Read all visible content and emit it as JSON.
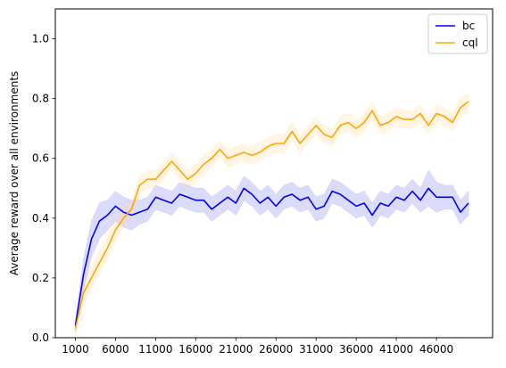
{
  "chart_data": {
    "type": "line",
    "title": "",
    "xlabel": "",
    "ylabel": "Average reward over all environments",
    "xlim": [
      -1500,
      53000
    ],
    "ylim": [
      0.0,
      1.1
    ],
    "x_ticks": [
      1000,
      6000,
      11000,
      16000,
      21000,
      26000,
      31000,
      36000,
      41000,
      46000
    ],
    "y_ticks": [
      0.0,
      0.2,
      0.4,
      0.6,
      0.8,
      1.0
    ],
    "grid": false,
    "legend_position": "top-right",
    "x": [
      1000,
      2000,
      3000,
      4000,
      5000,
      6000,
      7000,
      8000,
      9000,
      10000,
      11000,
      12000,
      13000,
      14000,
      15000,
      16000,
      17000,
      18000,
      19000,
      20000,
      21000,
      22000,
      23000,
      24000,
      25000,
      26000,
      27000,
      28000,
      29000,
      30000,
      31000,
      32000,
      33000,
      34000,
      35000,
      36000,
      37000,
      38000,
      39000,
      40000,
      41000,
      42000,
      43000,
      44000,
      45000,
      46000,
      47000,
      48000,
      49000,
      50000
    ],
    "series": [
      {
        "name": "bc",
        "color": "#0000ff",
        "band_color": "#6f6ff5",
        "values": [
          0.04,
          0.21,
          0.33,
          0.39,
          0.41,
          0.44,
          0.42,
          0.41,
          0.42,
          0.43,
          0.47,
          0.46,
          0.45,
          0.48,
          0.47,
          0.46,
          0.46,
          0.43,
          0.45,
          0.47,
          0.45,
          0.5,
          0.48,
          0.45,
          0.47,
          0.44,
          0.47,
          0.48,
          0.46,
          0.47,
          0.43,
          0.44,
          0.49,
          0.48,
          0.46,
          0.44,
          0.45,
          0.41,
          0.45,
          0.44,
          0.47,
          0.46,
          0.49,
          0.46,
          0.5,
          0.47,
          0.47,
          0.47,
          0.42,
          0.45
        ],
        "band": [
          0.02,
          0.05,
          0.06,
          0.06,
          0.05,
          0.05,
          0.05,
          0.05,
          0.04,
          0.04,
          0.04,
          0.04,
          0.04,
          0.04,
          0.04,
          0.04,
          0.04,
          0.04,
          0.04,
          0.04,
          0.04,
          0.04,
          0.04,
          0.04,
          0.04,
          0.04,
          0.04,
          0.04,
          0.04,
          0.04,
          0.04,
          0.04,
          0.04,
          0.04,
          0.04,
          0.04,
          0.04,
          0.04,
          0.04,
          0.04,
          0.04,
          0.04,
          0.04,
          0.04,
          0.06,
          0.05,
          0.04,
          0.04,
          0.04,
          0.04
        ]
      },
      {
        "name": "cql",
        "color": "#ffa500",
        "band_color": "#ffd98a",
        "values": [
          0.03,
          0.15,
          0.2,
          0.25,
          0.3,
          0.36,
          0.4,
          0.43,
          0.51,
          0.53,
          0.53,
          0.56,
          0.59,
          0.56,
          0.53,
          0.55,
          0.58,
          0.6,
          0.63,
          0.6,
          0.61,
          0.62,
          0.61,
          0.62,
          0.64,
          0.65,
          0.65,
          0.69,
          0.65,
          0.68,
          0.71,
          0.68,
          0.67,
          0.71,
          0.72,
          0.7,
          0.72,
          0.76,
          0.71,
          0.72,
          0.74,
          0.73,
          0.73,
          0.75,
          0.71,
          0.75,
          0.74,
          0.72,
          0.77,
          0.79
        ],
        "band": [
          0.02,
          0.04,
          0.04,
          0.04,
          0.04,
          0.04,
          0.03,
          0.03,
          0.03,
          0.03,
          0.03,
          0.03,
          0.03,
          0.03,
          0.03,
          0.03,
          0.03,
          0.03,
          0.03,
          0.03,
          0.03,
          0.03,
          0.03,
          0.03,
          0.03,
          0.03,
          0.03,
          0.03,
          0.03,
          0.03,
          0.03,
          0.03,
          0.03,
          0.03,
          0.03,
          0.03,
          0.03,
          0.03,
          0.03,
          0.03,
          0.03,
          0.03,
          0.03,
          0.03,
          0.03,
          0.03,
          0.03,
          0.03,
          0.03,
          0.03
        ]
      }
    ]
  }
}
